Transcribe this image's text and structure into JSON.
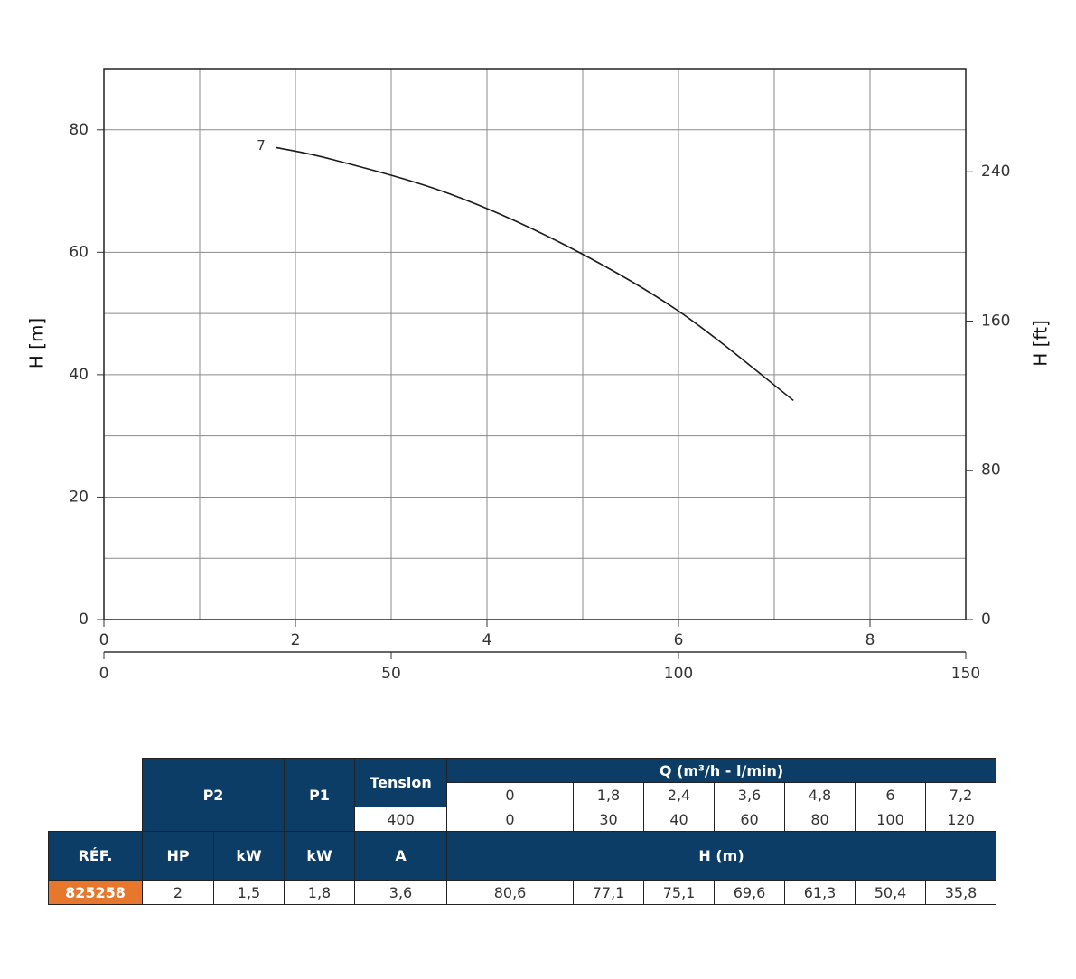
{
  "chart_data": {
    "type": "line",
    "x": [
      1.8,
      2.4,
      3.6,
      4.8,
      6,
      7.2
    ],
    "series": [
      {
        "name": "7",
        "color": "#1a1a1a",
        "values": [
          77.1,
          75.1,
          69.6,
          61.3,
          50.4,
          35.8
        ]
      }
    ],
    "xlim": [
      0,
      9
    ],
    "xticks": [
      0,
      2,
      4,
      6,
      8
    ],
    "xgrid_minor": [
      1,
      3,
      5,
      7
    ],
    "x2lim": [
      0,
      150
    ],
    "x2ticks": [
      0,
      50,
      100,
      150
    ],
    "ylim": [
      0,
      90
    ],
    "yticks": [
      0,
      20,
      40,
      60,
      80
    ],
    "ygrid_minor": [
      10,
      30,
      50,
      70
    ],
    "y2lim": [
      0,
      295.3
    ],
    "y2ticks": [
      0,
      80,
      160,
      240
    ],
    "ylabel": "H [m]",
    "y2label": "H [ft]",
    "grid": true
  },
  "table": {
    "p2": "P2",
    "p1": "P1",
    "tension": "Tension",
    "q": "Q (m³/h - l/min)",
    "q_m3h": [
      "0",
      "1,8",
      "2,4",
      "3,6",
      "4,8",
      "6",
      "7,2"
    ],
    "voltage": "400",
    "q_lmin": [
      "0",
      "30",
      "40",
      "60",
      "80",
      "100",
      "120"
    ],
    "columns": [
      "RÉF.",
      "HP",
      "kW",
      "kW",
      "A"
    ],
    "h": "H (m)",
    "rows": [
      [
        "825258",
        "2",
        "1,5",
        "1,8",
        "3,6",
        "80,6",
        "77,1",
        "75,1",
        "69,6",
        "61,3",
        "50,4",
        "35,8"
      ]
    ]
  }
}
